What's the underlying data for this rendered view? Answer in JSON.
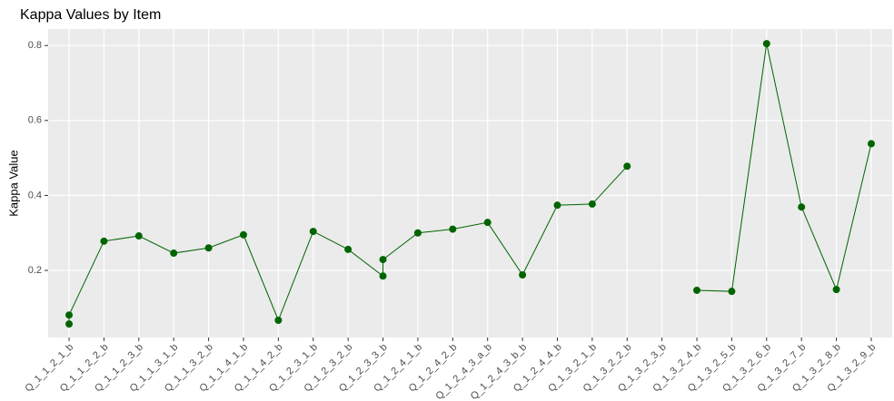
{
  "chart_data": {
    "type": "line",
    "title": "Kappa Values by Item",
    "y_label": "Kappa Value",
    "categories": [
      "Q_1_1_2_1_b",
      "Q_1_1_2_2_b",
      "Q_1_1_2_3_b",
      "Q_1_1_3_1_b",
      "Q_1_1_3_2_b",
      "Q_1_1_4_1_b",
      "Q_1_1_4_2_b",
      "Q_1_2_3_1_b",
      "Q_1_2_3_2_b",
      "Q_1_2_3_3_b",
      "Q_1_2_4_1_b",
      "Q_1_2_4_2_b",
      "Q_1_2_4_3_a_b",
      "Q_1_2_4_3_b_b",
      "Q_1_2_4_4_b",
      "Q_1_3_2_1_b",
      "Q_1_3_2_2_b",
      "Q_1_3_2_3_b",
      "Q_1_3_2_4_b",
      "Q_1_3_2_5_b",
      "Q_1_3_2_6_b",
      "Q_1_3_2_7_b",
      "Q_1_3_2_8_b",
      "Q_1_3_2_9_b"
    ],
    "series": [
      {
        "color": "#006400",
        "values": [
          [
            0.057,
            0.081
          ],
          [
            0.278
          ],
          [
            0.292
          ],
          [
            0.246
          ],
          [
            0.26
          ],
          [
            0.295
          ],
          [
            0.067
          ],
          [
            0.304
          ],
          [
            0.256
          ],
          [
            0.185,
            0.229
          ],
          [
            0.3
          ],
          [
            0.31
          ],
          [
            0.328
          ],
          [
            0.188
          ],
          [
            0.374
          ],
          [
            0.377
          ],
          [
            0.478
          ],
          null,
          [
            0.147
          ],
          [
            0.144
          ],
          [
            0.805
          ],
          [
            0.369
          ],
          [
            0.149
          ],
          [
            0.538
          ]
        ]
      }
    ],
    "ylim": [
      0.021,
      0.844
    ],
    "yticks": [
      0.2,
      0.4,
      0.6,
      0.8
    ],
    "grid": true
  }
}
